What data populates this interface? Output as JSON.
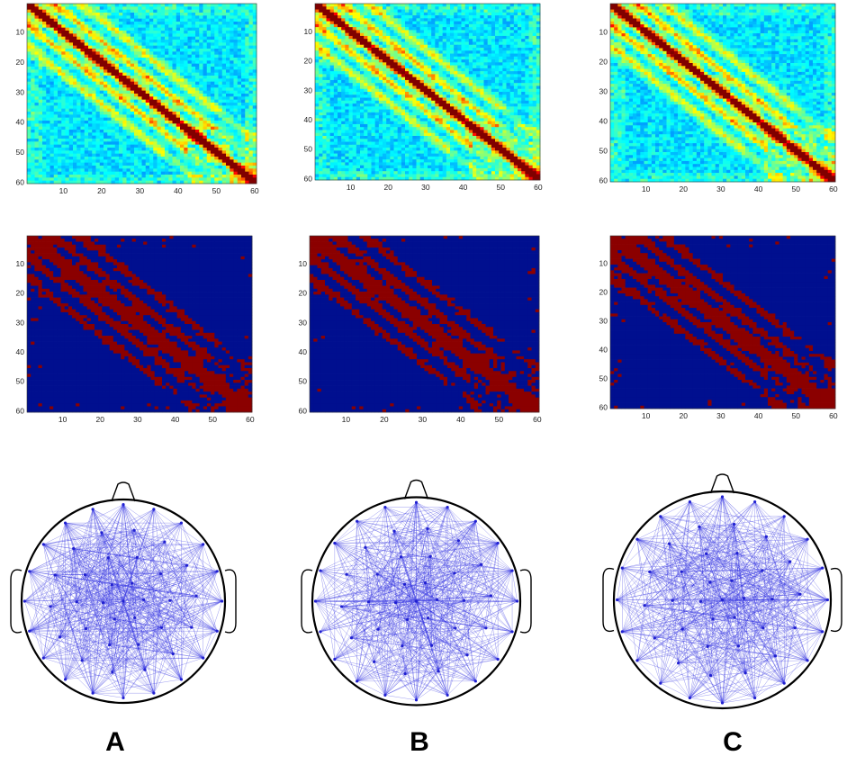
{
  "figure": {
    "column_labels": [
      "A",
      "B",
      "C"
    ]
  },
  "chart_data": [
    {
      "type": "heatmap",
      "panel": "A",
      "variant": "correlation",
      "xlim": [
        1,
        60
      ],
      "ylim": [
        1,
        60
      ],
      "xticks": [
        "10",
        "20",
        "30",
        "40",
        "50",
        "60"
      ],
      "yticks": [
        "10",
        "20",
        "30",
        "40",
        "50",
        "60"
      ],
      "colormap": "jet"
    },
    {
      "type": "heatmap",
      "panel": "B",
      "variant": "correlation",
      "xlim": [
        1,
        60
      ],
      "ylim": [
        1,
        60
      ],
      "xticks": [
        "10",
        "20",
        "30",
        "40",
        "50",
        "60"
      ],
      "yticks": [
        "10",
        "20",
        "30",
        "40",
        "50",
        "60"
      ],
      "colormap": "jet"
    },
    {
      "type": "heatmap",
      "panel": "C",
      "variant": "correlation",
      "xlim": [
        1,
        60
      ],
      "ylim": [
        1,
        60
      ],
      "xticks": [
        "10",
        "20",
        "30",
        "40",
        "50",
        "60"
      ],
      "yticks": [
        "10",
        "20",
        "30",
        "40",
        "50",
        "60"
      ],
      "colormap": "jet"
    },
    {
      "type": "heatmap",
      "panel": "A",
      "variant": "binary-adjacency",
      "xlim": [
        1,
        60
      ],
      "ylim": [
        1,
        60
      ],
      "xticks": [
        "10",
        "20",
        "30",
        "40",
        "50",
        "60"
      ],
      "yticks": [
        "10",
        "20",
        "30",
        "40",
        "50",
        "60"
      ],
      "colors": {
        "connected": "#8b0000",
        "not_connected": "#000f8f"
      }
    },
    {
      "type": "heatmap",
      "panel": "B",
      "variant": "binary-adjacency",
      "xlim": [
        1,
        60
      ],
      "ylim": [
        1,
        60
      ],
      "xticks": [
        "10",
        "20",
        "30",
        "40",
        "50",
        "60"
      ],
      "yticks": [
        "10",
        "20",
        "30",
        "40",
        "50",
        "60"
      ],
      "colors": {
        "connected": "#8b0000",
        "not_connected": "#000f8f"
      }
    },
    {
      "type": "heatmap",
      "panel": "C",
      "variant": "binary-adjacency",
      "xlim": [
        1,
        60
      ],
      "ylim": [
        1,
        60
      ],
      "xticks": [
        "10",
        "20",
        "30",
        "40",
        "50",
        "60"
      ],
      "yticks": [
        "10",
        "20",
        "30",
        "40",
        "50",
        "60"
      ],
      "colors": {
        "connected": "#8b0000",
        "not_connected": "#000f8f"
      }
    },
    {
      "type": "network-topoplot",
      "panel": "A",
      "edge_color": "#3030e0",
      "node_color": "#2020d0"
    },
    {
      "type": "network-topoplot",
      "panel": "B",
      "edge_color": "#3030e0",
      "node_color": "#2020d0"
    },
    {
      "type": "network-topoplot",
      "panel": "C",
      "edge_color": "#3030e0",
      "node_color": "#2020d0"
    }
  ]
}
